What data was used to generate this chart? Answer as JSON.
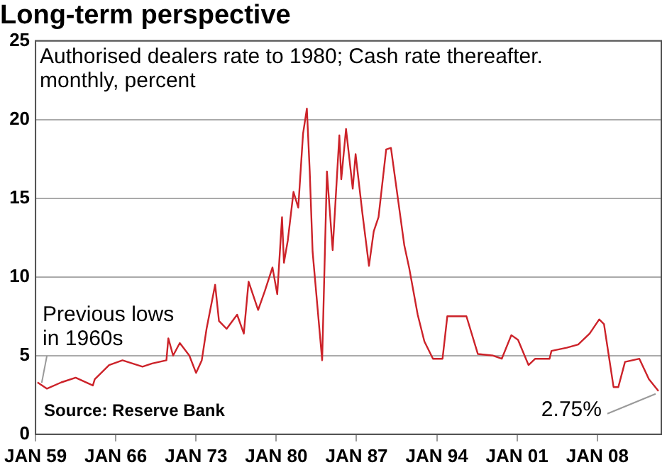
{
  "chart_data": {
    "type": "line",
    "title": "Long-term perspective",
    "x": [
      "1959-03",
      "1960-01",
      "1961-04",
      "1962-07",
      "1964-01",
      "1964-03",
      "1965-06",
      "1966-08",
      "1968-05",
      "1969-03",
      "1970-06",
      "1970-08",
      "1971-01",
      "1971-08",
      "1972-06",
      "1973-01",
      "1973-07",
      "1973-12",
      "1974-09",
      "1975-01",
      "1975-09",
      "1976-08",
      "1977-03",
      "1977-08",
      "1978-06",
      "1979-01",
      "1979-09",
      "1980-02",
      "1980-07",
      "1980-09",
      "1981-01",
      "1981-07",
      "1981-12",
      "1982-05",
      "1982-09",
      "1982-12",
      "1983-03",
      "1984-01",
      "1984-06",
      "1984-12",
      "1985-07",
      "1985-09",
      "1986-02",
      "1986-09",
      "1986-12",
      "1987-07",
      "1988-02",
      "1988-07",
      "1988-12",
      "1989-08",
      "1990-01",
      "1990-08",
      "1991-03",
      "1991-08",
      "1992-05",
      "1992-12",
      "1993-09",
      "1994-07",
      "1994-12",
      "1996-08",
      "1997-08",
      "1998-12",
      "1999-09",
      "2000-07",
      "2001-02",
      "2002-01",
      "2002-08",
      "2003-11",
      "2004-01",
      "2005-05",
      "2006-05",
      "2007-05",
      "2008-03",
      "2008-08",
      "2009-01",
      "2009-06",
      "2009-11",
      "2010-06",
      "2011-09",
      "2012-07",
      "2013-05"
    ],
    "series": [
      {
        "color": "#cc2229",
        "values": [
          3.3,
          2.9,
          3.3,
          3.6,
          3.1,
          3.5,
          4.4,
          4.7,
          4.3,
          4.5,
          4.7,
          6.1,
          5.0,
          5.8,
          5.0,
          3.9,
          4.7,
          6.7,
          9.5,
          7.2,
          6.7,
          7.6,
          6.4,
          9.7,
          7.9,
          9.1,
          10.6,
          8.9,
          13.8,
          10.9,
          12.3,
          15.4,
          14.4,
          19.1,
          20.7,
          16.7,
          11.6,
          4.7,
          16.7,
          11.7,
          19.0,
          16.2,
          19.4,
          15.6,
          17.8,
          14.1,
          10.7,
          12.9,
          13.8,
          18.1,
          18.2,
          15.1,
          12.0,
          10.6,
          7.6,
          5.9,
          4.8,
          4.8,
          7.5,
          7.5,
          5.1,
          5.0,
          4.8,
          6.3,
          6.0,
          4.4,
          4.8,
          4.8,
          5.3,
          5.5,
          5.7,
          6.4,
          7.3,
          7.0,
          5.0,
          3.0,
          3.0,
          4.6,
          4.8,
          3.5,
          2.75
        ]
      }
    ],
    "xlim": [
      "1959-01",
      "2013-08"
    ],
    "xticks": [
      {
        "value": "1959-01",
        "label": "JAN 59"
      },
      {
        "value": "1966-01",
        "label": "JAN 66"
      },
      {
        "value": "1973-01",
        "label": "JAN 73"
      },
      {
        "value": "1980-01",
        "label": "JAN 80"
      },
      {
        "value": "1987-01",
        "label": "JAN 87"
      },
      {
        "value": "1994-01",
        "label": "JAN 94"
      },
      {
        "value": "2001-01",
        "label": "JAN 01"
      },
      {
        "value": "2008-01",
        "label": "JAN 08"
      }
    ],
    "ylim": [
      0,
      25
    ],
    "yticks": [
      0,
      5,
      10,
      15,
      20,
      25
    ],
    "grid": "y",
    "legend": false,
    "marker": "none",
    "line_style": "solid",
    "annotations": [
      "Authorised dealers rate to 1980; Cash rate thereafter.",
      "monthly, percent",
      {
        "text": "Previous lows\nin 1960s",
        "x": "1959-06",
        "y": 3.0
      },
      {
        "text": "2.75%",
        "x": "2013-05",
        "y": 2.75
      },
      "Source: Reserve Bank"
    ]
  }
}
